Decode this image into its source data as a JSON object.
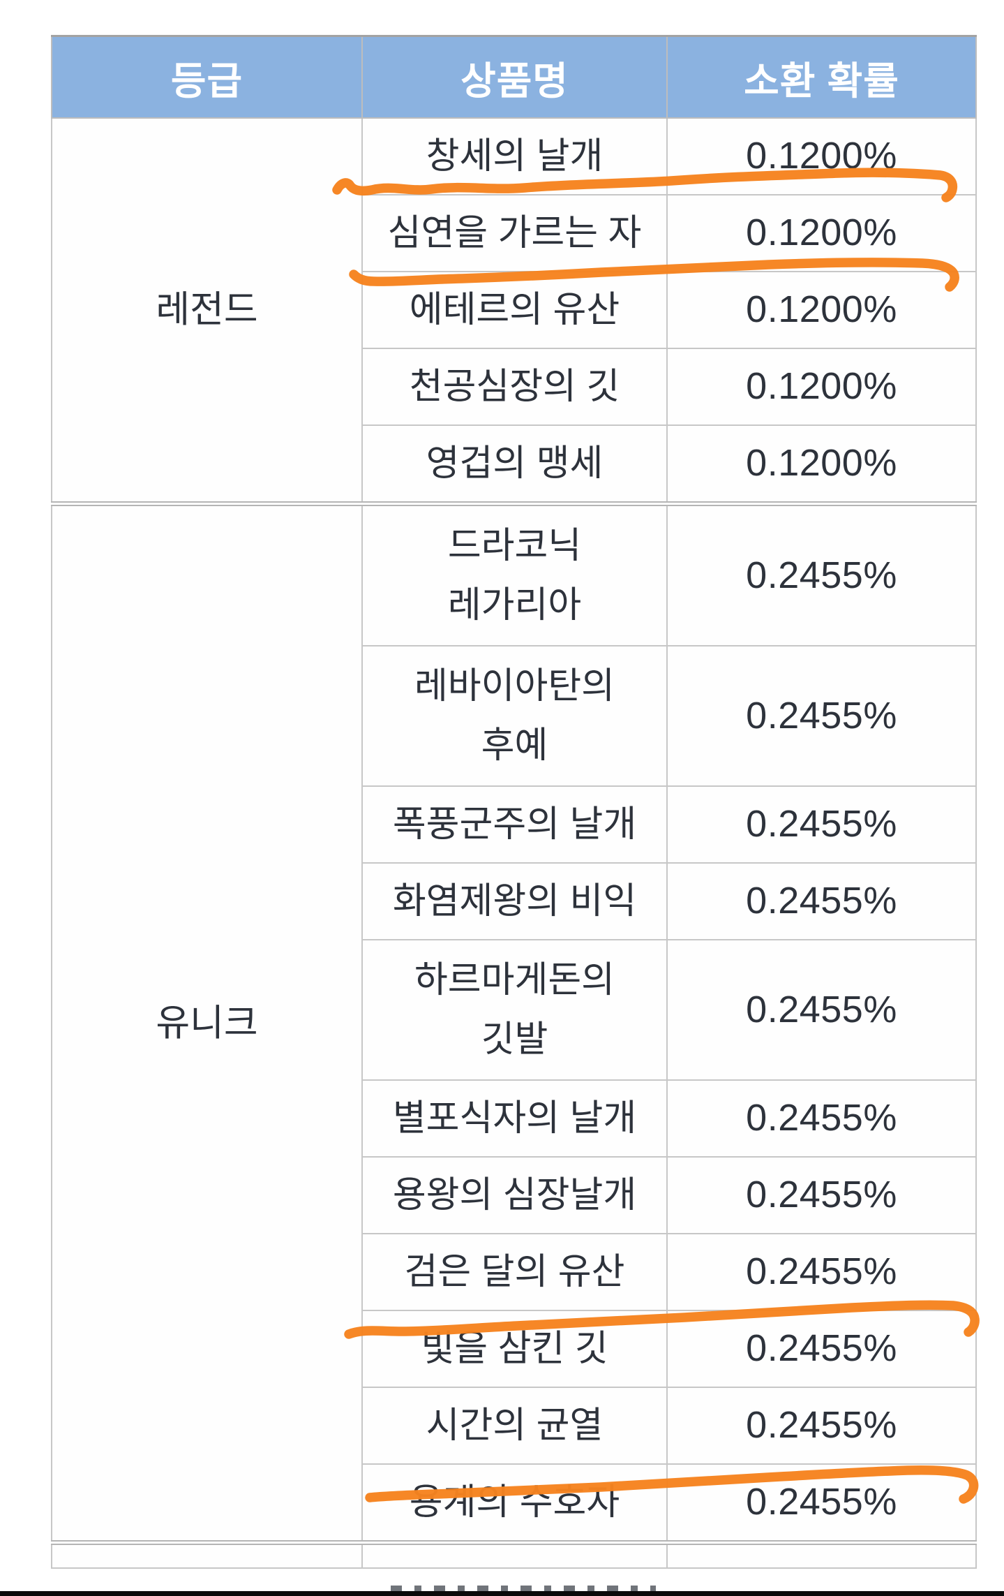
{
  "page": {
    "background": "#ffffff",
    "description": "Korean game item summon probability table with orange marker underlines"
  },
  "table": {
    "headers": [
      {
        "label": "등급"
      },
      {
        "label": "상품명"
      },
      {
        "label": "소환 확률"
      }
    ],
    "groups": [
      {
        "grade": "레전드",
        "items": [
          {
            "name_lines": [
              "창세의 날개"
            ],
            "probability": "0.1200%",
            "marker_underlined": true
          },
          {
            "name_lines": [
              "심연을 가르는 자"
            ],
            "probability": "0.1200%",
            "marker_underlined": true
          },
          {
            "name_lines": [
              "에테르의 유산"
            ],
            "probability": "0.1200%"
          },
          {
            "name_lines": [
              "천공심장의 깃"
            ],
            "probability": "0.1200%"
          },
          {
            "name_lines": [
              "영겁의 맹세"
            ],
            "probability": "0.1200%"
          }
        ]
      },
      {
        "grade": "유니크",
        "items": [
          {
            "name_lines": [
              "드라코닉",
              "레가리아"
            ],
            "probability": "0.2455%"
          },
          {
            "name_lines": [
              "레바이아탄의",
              "후예"
            ],
            "probability": "0.2455%"
          },
          {
            "name_lines": [
              "폭풍군주의 날개"
            ],
            "probability": "0.2455%"
          },
          {
            "name_lines": [
              "화염제왕의 비익"
            ],
            "probability": "0.2455%"
          },
          {
            "name_lines": [
              "하르마게돈의",
              "깃발"
            ],
            "probability": "0.2455%"
          },
          {
            "name_lines": [
              "별포식자의 날개"
            ],
            "probability": "0.2455%"
          },
          {
            "name_lines": [
              "용왕의 심장날개"
            ],
            "probability": "0.2455%"
          },
          {
            "name_lines": [
              "검은 달의 유산"
            ],
            "probability": "0.2455%",
            "marker_underlined": true
          },
          {
            "name_lines": [
              "빛을 삼킨 깃"
            ],
            "probability": "0.2455%"
          },
          {
            "name_lines": [
              "시간의 균열"
            ],
            "probability": "0.2455%",
            "marker_underlined": true
          },
          {
            "name_lines": [
              "용계의 수호자"
            ],
            "probability": "0.2455%"
          }
        ]
      }
    ]
  },
  "annotations": {
    "marker_color": "#f6831f",
    "marker_underlined_items": [
      "창세의 날개",
      "심연을 가르는 자",
      "검은 달의 유산",
      "시간의 균열"
    ]
  },
  "colors": {
    "header_background": "#8bb2e0",
    "header_text": "#ffffff",
    "body_text": "#2d323b",
    "grid_line": "#c7c7c7",
    "bottom_bar": "#0a0a0a"
  }
}
